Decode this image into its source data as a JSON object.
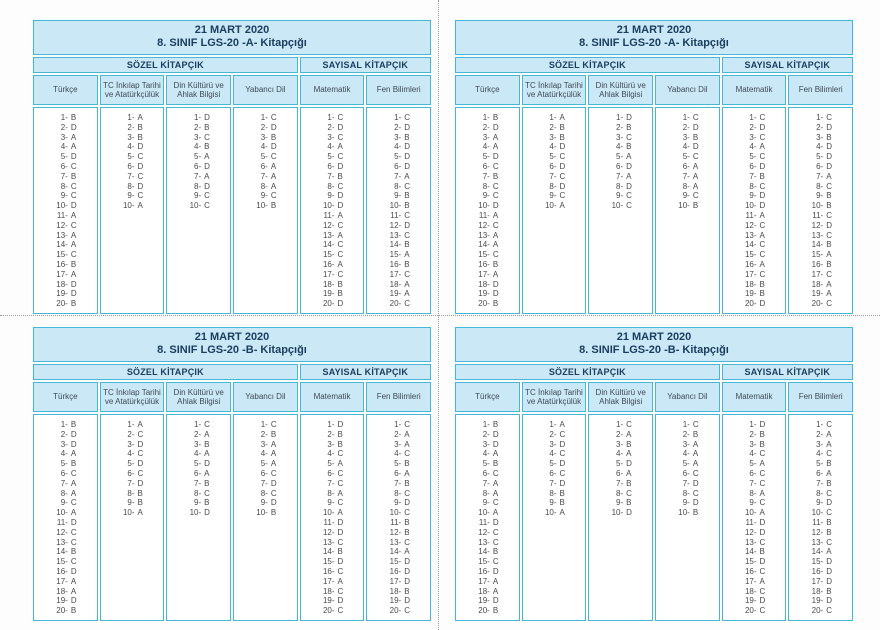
{
  "document": {
    "kind": "exam-answer-key-sheet",
    "answer_format": "{n}- {letter}"
  },
  "header_labels": {
    "date": "21 MART 2020",
    "sozel": "SÖZEL KİTAPÇIK",
    "sayisal": "SAYISAL KİTAPÇIK"
  },
  "columns": [
    "Türkçe",
    "TC İnkılap Tarihi ve Atatürkçülük",
    "Din Kültürü ve Ahlak Bilgisi",
    "Yabancı Dil",
    "Matematik",
    "Fen Bilimleri"
  ],
  "booklets": {
    "A": {
      "title": "8. SINIF LGS-20  -A- Kitapçığı",
      "answers": [
        [
          "B",
          "D",
          "A",
          "A",
          "D",
          "C",
          "B",
          "C",
          "C",
          "D",
          "A",
          "C",
          "A",
          "A",
          "C",
          "B",
          "A",
          "D",
          "D",
          "B"
        ],
        [
          "A",
          "B",
          "B",
          "D",
          "C",
          "D",
          "C",
          "D",
          "C",
          "A"
        ],
        [
          "D",
          "B",
          "C",
          "B",
          "A",
          "D",
          "A",
          "D",
          "C",
          "C"
        ],
        [
          "C",
          "D",
          "B",
          "D",
          "C",
          "A",
          "A",
          "A",
          "C",
          "B"
        ],
        [
          "C",
          "D",
          "C",
          "A",
          "C",
          "D",
          "B",
          "C",
          "D",
          "D",
          "A",
          "C",
          "A",
          "C",
          "C",
          "A",
          "C",
          "B",
          "B",
          "D"
        ],
        [
          "C",
          "D",
          "B",
          "D",
          "D",
          "D",
          "A",
          "C",
          "B",
          "B",
          "C",
          "D",
          "C",
          "B",
          "A",
          "B",
          "C",
          "A",
          "A",
          "C"
        ]
      ]
    },
    "B": {
      "title": "8. SINIF LGS-20  -B- Kitapçığı",
      "answers": [
        [
          "B",
          "D",
          "D",
          "A",
          "B",
          "C",
          "A",
          "A",
          "C",
          "A",
          "D",
          "C",
          "C",
          "B",
          "C",
          "D",
          "A",
          "A",
          "D",
          "B"
        ],
        [
          "A",
          "C",
          "D",
          "C",
          "D",
          "C",
          "D",
          "B",
          "B",
          "A"
        ],
        [
          "C",
          "A",
          "B",
          "A",
          "D",
          "A",
          "B",
          "C",
          "B",
          "D"
        ],
        [
          "C",
          "B",
          "A",
          "A",
          "A",
          "C",
          "D",
          "C",
          "D",
          "B"
        ],
        [
          "D",
          "B",
          "B",
          "C",
          "A",
          "C",
          "C",
          "A",
          "C",
          "A",
          "D",
          "D",
          "C",
          "B",
          "D",
          "C",
          "A",
          "C",
          "D",
          "C"
        ],
        [
          "C",
          "A",
          "A",
          "C",
          "B",
          "A",
          "B",
          "C",
          "D",
          "C",
          "B",
          "B",
          "C",
          "A",
          "D",
          "D",
          "D",
          "B",
          "D",
          "C"
        ]
      ]
    }
  },
  "panel_layout": [
    "A",
    "A",
    "B",
    "B"
  ],
  "colors": {
    "border": "#45b7d9",
    "header_bg": "#cbe8f6",
    "title_text": "#1b3e60",
    "head_text": "#3e4a57",
    "answer_text": "#4a4a4a",
    "cut_line": "#9a9a9a"
  }
}
